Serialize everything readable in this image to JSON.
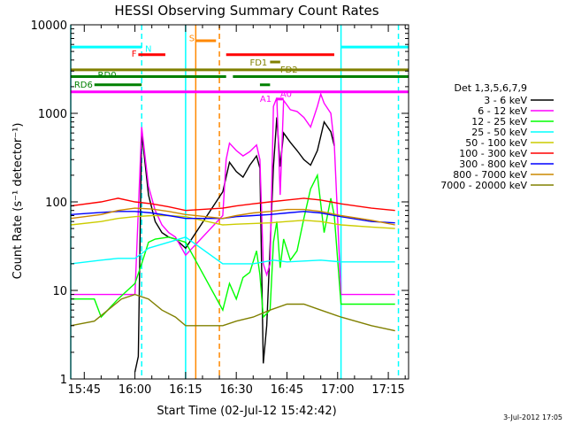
{
  "chart_data": {
    "type": "line",
    "title": "HESSI Observing Summary Count Rates",
    "xlabel": "Start Time (02-Jul-12 15:42:42)",
    "ylabel": "Count Rate (s⁻¹ detector⁻¹)",
    "x_unit": "time of day (hh:mm)",
    "xlim": [
      "15:41",
      "17:21"
    ],
    "ylim": [
      1,
      10000
    ],
    "yscale": "log",
    "x_ticks": [
      "15:45",
      "16:00",
      "16:15",
      "16:30",
      "16:45",
      "17:00",
      "17:15"
    ],
    "y_ticks": [
      "1",
      "10",
      "100",
      "1000",
      "10000"
    ],
    "grid": false,
    "legend": {
      "position": "right",
      "title": "Det 1,3,5,6,7,9"
    },
    "series": [
      {
        "name": "3 - 6 keV",
        "color": "#000000",
        "points": [
          [
            "16:00",
            1.2
          ],
          [
            "16:01",
            1.8
          ],
          [
            "16:02",
            620
          ],
          [
            "16:04",
            120
          ],
          [
            "16:06",
            60
          ],
          [
            "16:08",
            45
          ],
          [
            "16:10",
            40
          ],
          [
            "16:12",
            38
          ],
          [
            "16:15",
            30
          ],
          [
            "16:26",
            130
          ],
          [
            "16:28",
            280
          ],
          [
            "16:30",
            220
          ],
          [
            "16:32",
            190
          ],
          [
            "16:34",
            260
          ],
          [
            "16:36",
            330
          ],
          [
            "16:37",
            240
          ],
          [
            "16:38",
            1.5
          ],
          [
            "16:39",
            4
          ],
          [
            "16:41",
            250
          ],
          [
            "16:42",
            900
          ],
          [
            "16:43",
            250
          ],
          [
            "16:44",
            600
          ],
          [
            "16:46",
            470
          ],
          [
            "16:48",
            380
          ],
          [
            "16:50",
            300
          ],
          [
            "16:52",
            260
          ],
          [
            "16:54",
            380
          ],
          [
            "16:56",
            800
          ],
          [
            "16:58",
            620
          ],
          [
            "16:59",
            430
          ]
        ]
      },
      {
        "name": "6 - 12 keV",
        "color": "#ff00ff",
        "points": [
          [
            "15:41",
            9
          ],
          [
            "15:55",
            9
          ],
          [
            "16:00",
            9
          ],
          [
            "16:02",
            700
          ],
          [
            "16:04",
            150
          ],
          [
            "16:06",
            80
          ],
          [
            "16:08",
            55
          ],
          [
            "16:10",
            45
          ],
          [
            "16:12",
            40
          ],
          [
            "16:15",
            25
          ],
          [
            "16:26",
            70
          ],
          [
            "16:27",
            300
          ],
          [
            "16:28",
            460
          ],
          [
            "16:30",
            380
          ],
          [
            "16:32",
            330
          ],
          [
            "16:34",
            370
          ],
          [
            "16:36",
            440
          ],
          [
            "16:37",
            300
          ],
          [
            "16:38",
            20
          ],
          [
            "16:39",
            15
          ],
          [
            "16:40",
            20
          ],
          [
            "16:41",
            1200
          ],
          [
            "16:42",
            1500
          ],
          [
            "16:43",
            120
          ],
          [
            "16:44",
            1400
          ],
          [
            "16:46",
            1100
          ],
          [
            "16:48",
            1050
          ],
          [
            "16:50",
            900
          ],
          [
            "16:52",
            700
          ],
          [
            "16:54",
            1200
          ],
          [
            "16:55",
            1650
          ],
          [
            "16:56",
            1300
          ],
          [
            "16:58",
            1000
          ],
          [
            "16:59",
            450
          ],
          [
            "17:01",
            9
          ],
          [
            "17:17",
            9
          ]
        ]
      },
      {
        "name": "12 - 25 keV",
        "color": "#00ff00",
        "points": [
          [
            "15:41",
            8
          ],
          [
            "15:48",
            8
          ],
          [
            "15:50",
            5
          ],
          [
            "15:55",
            8
          ],
          [
            "16:00",
            12
          ],
          [
            "16:02",
            20
          ],
          [
            "16:04",
            35
          ],
          [
            "16:06",
            38
          ],
          [
            "16:10",
            40
          ],
          [
            "16:15",
            35
          ],
          [
            "16:26",
            6
          ],
          [
            "16:28",
            12
          ],
          [
            "16:30",
            8
          ],
          [
            "16:32",
            14
          ],
          [
            "16:34",
            16
          ],
          [
            "16:36",
            28
          ],
          [
            "16:37",
            15
          ],
          [
            "16:38",
            5
          ],
          [
            "16:40",
            6
          ],
          [
            "16:41",
            35
          ],
          [
            "16:42",
            60
          ],
          [
            "16:43",
            18
          ],
          [
            "16:44",
            38
          ],
          [
            "16:46",
            22
          ],
          [
            "16:48",
            28
          ],
          [
            "16:50",
            65
          ],
          [
            "16:52",
            140
          ],
          [
            "16:54",
            200
          ],
          [
            "16:56",
            45
          ],
          [
            "16:58",
            110
          ],
          [
            "16:59",
            70
          ],
          [
            "17:01",
            7
          ],
          [
            "17:17",
            7
          ]
        ]
      },
      {
        "name": "25 - 50 keV",
        "color": "#00ffff",
        "points": [
          [
            "15:41",
            20
          ],
          [
            "15:50",
            22
          ],
          [
            "15:55",
            23
          ],
          [
            "16:00",
            23
          ],
          [
            "16:02",
            26
          ],
          [
            "16:04",
            30
          ],
          [
            "16:10",
            35
          ],
          [
            "16:15",
            40
          ],
          [
            "16:26",
            20
          ],
          [
            "16:35",
            20
          ],
          [
            "16:41",
            22
          ],
          [
            "16:45",
            21
          ],
          [
            "16:55",
            22
          ],
          [
            "17:01",
            21
          ],
          [
            "17:17",
            21
          ]
        ]
      },
      {
        "name": "50 - 100 keV",
        "color": "#cccc00",
        "points": [
          [
            "15:41",
            55
          ],
          [
            "15:50",
            60
          ],
          [
            "15:55",
            65
          ],
          [
            "16:00",
            68
          ],
          [
            "16:05",
            70
          ],
          [
            "16:10",
            70
          ],
          [
            "16:15",
            68
          ],
          [
            "16:26",
            55
          ],
          [
            "16:30",
            56
          ],
          [
            "16:35",
            57
          ],
          [
            "16:40",
            58
          ],
          [
            "16:45",
            60
          ],
          [
            "16:50",
            62
          ],
          [
            "16:55",
            60
          ],
          [
            "17:01",
            55
          ],
          [
            "17:10",
            52
          ],
          [
            "17:17",
            50
          ]
        ]
      },
      {
        "name": "100 - 300 keV",
        "color": "#ff0000",
        "points": [
          [
            "15:41",
            90
          ],
          [
            "15:50",
            100
          ],
          [
            "15:55",
            110
          ],
          [
            "16:00",
            100
          ],
          [
            "16:05",
            95
          ],
          [
            "16:10",
            88
          ],
          [
            "16:15",
            80
          ],
          [
            "16:26",
            85
          ],
          [
            "16:30",
            90
          ],
          [
            "16:35",
            95
          ],
          [
            "16:40",
            100
          ],
          [
            "16:45",
            105
          ],
          [
            "16:50",
            110
          ],
          [
            "16:55",
            105
          ],
          [
            "17:01",
            95
          ],
          [
            "17:10",
            85
          ],
          [
            "17:17",
            80
          ]
        ]
      },
      {
        "name": "300 - 800 keV",
        "color": "#0000ff",
        "points": [
          [
            "15:41",
            72
          ],
          [
            "15:50",
            76
          ],
          [
            "15:55",
            78
          ],
          [
            "16:00",
            78
          ],
          [
            "16:05",
            75
          ],
          [
            "16:10",
            70
          ],
          [
            "16:15",
            65
          ],
          [
            "16:26",
            65
          ],
          [
            "16:30",
            68
          ],
          [
            "16:35",
            70
          ],
          [
            "16:40",
            72
          ],
          [
            "16:45",
            75
          ],
          [
            "16:50",
            78
          ],
          [
            "16:55",
            75
          ],
          [
            "17:01",
            68
          ],
          [
            "17:10",
            60
          ],
          [
            "17:17",
            58
          ]
        ]
      },
      {
        "name": "800 - 7000 keV",
        "color": "#cc8800",
        "points": [
          [
            "15:41",
            65
          ],
          [
            "15:50",
            72
          ],
          [
            "15:55",
            80
          ],
          [
            "16:00",
            85
          ],
          [
            "16:05",
            83
          ],
          [
            "16:10",
            78
          ],
          [
            "16:15",
            72
          ],
          [
            "16:26",
            65
          ],
          [
            "16:30",
            70
          ],
          [
            "16:35",
            75
          ],
          [
            "16:40",
            78
          ],
          [
            "16:45",
            82
          ],
          [
            "16:50",
            82
          ],
          [
            "16:55",
            78
          ],
          [
            "17:01",
            70
          ],
          [
            "17:10",
            62
          ],
          [
            "17:17",
            55
          ]
        ]
      },
      {
        "name": "7000 - 20000 keV",
        "color": "#808000",
        "points": [
          [
            "15:41",
            4
          ],
          [
            "15:48",
            4.5
          ],
          [
            "15:52",
            6
          ],
          [
            "15:56",
            8
          ],
          [
            "16:00",
            9
          ],
          [
            "16:04",
            8
          ],
          [
            "16:08",
            6
          ],
          [
            "16:12",
            5
          ],
          [
            "16:15",
            4
          ],
          [
            "16:26",
            4
          ],
          [
            "16:30",
            4.5
          ],
          [
            "16:35",
            5
          ],
          [
            "16:40",
            6
          ],
          [
            "16:45",
            7
          ],
          [
            "16:50",
            7
          ],
          [
            "16:55",
            6
          ],
          [
            "17:01",
            5
          ],
          [
            "17:10",
            4
          ],
          [
            "17:17",
            3.5
          ]
        ]
      }
    ],
    "annotations": {
      "vlines": [
        {
          "x": "15:41",
          "color": "#00ffff",
          "dash": false
        },
        {
          "x": "16:02",
          "color": "#00ffff",
          "dash": true
        },
        {
          "x": "16:15",
          "color": "#00ffff",
          "dash": false
        },
        {
          "x": "16:18",
          "color": "#ff8800",
          "dash": false
        },
        {
          "x": "16:25",
          "color": "#ff8800",
          "dash": true
        },
        {
          "x": "17:01",
          "color": "#00ffff",
          "dash": false
        },
        {
          "x": "17:18",
          "color": "#00ffff",
          "dash": true
        }
      ],
      "bars": [
        {
          "label": "N",
          "color": "#00ffff",
          "y": 5600,
          "segments": [
            [
              "15:41",
              "16:02"
            ],
            [
              "17:01",
              "17:21"
            ]
          ],
          "label_x": "16:03",
          "label_y": 5300
        },
        {
          "label": "S",
          "color": "#ff8800",
          "y": 6600,
          "segments": [
            [
              "16:18",
              "16:24"
            ]
          ],
          "label_x": "16:16",
          "label_y": 7000
        },
        {
          "label": "F",
          "color": "#ff0000",
          "y": 4600,
          "segments": [
            [
              "16:01",
              "16:09"
            ],
            [
              "16:27",
              "16:59"
            ]
          ],
          "label_x": "15:59",
          "label_y": 4700
        },
        {
          "label": "FD1",
          "color": "#808000",
          "y": 3800,
          "segments": [
            [
              "16:40",
              "16:43"
            ]
          ],
          "label_x": "16:34",
          "label_y": 3700
        },
        {
          "label": "FD2",
          "color": "#808000",
          "y": 3100,
          "segments": [
            [
              "15:41",
              "17:21"
            ]
          ],
          "label_x": "16:43",
          "label_y": 3100
        },
        {
          "label": "RD0",
          "color": "#008000",
          "y": 2600,
          "segments": [
            [
              "15:41",
              "16:27"
            ],
            [
              "16:29",
              "17:21"
            ]
          ],
          "label_x": "15:49",
          "label_y": 2700
        },
        {
          "label": "RD6",
          "color": "#008000",
          "y": 2100,
          "segments": [
            [
              "15:48",
              "16:02"
            ],
            [
              "16:37",
              "16:40"
            ]
          ],
          "label_x": "15:42",
          "label_y": 2100
        },
        {
          "label": "A0",
          "color": "#ff00ff",
          "y": 1450,
          "segments": [
            [
              "16:42",
              "16:44"
            ]
          ],
          "label_x": "16:43",
          "label_y": 1650
        },
        {
          "label": "A1",
          "color": "#ff00ff",
          "y": 1750,
          "segments": [
            [
              "15:41",
              "17:21"
            ]
          ],
          "label_x": "16:37",
          "label_y": 1450
        }
      ]
    }
  },
  "footer": {
    "date_stamp": "3-Jul-2012 17:05"
  }
}
